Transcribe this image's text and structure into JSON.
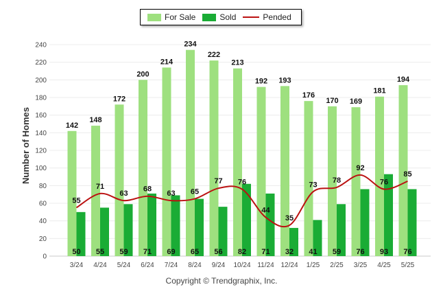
{
  "chart_data": {
    "type": "bar",
    "categories": [
      "3/24",
      "4/24",
      "5/24",
      "6/24",
      "7/24",
      "8/24",
      "9/24",
      "10/24",
      "11/24",
      "12/24",
      "1/25",
      "2/25",
      "3/25",
      "4/25",
      "5/25"
    ],
    "series": [
      {
        "name": "For Sale",
        "type": "bar",
        "color": "#9ee07f",
        "values": [
          142,
          148,
          172,
          200,
          214,
          234,
          222,
          213,
          192,
          193,
          176,
          170,
          169,
          181,
          194
        ]
      },
      {
        "name": "Sold",
        "type": "bar",
        "color": "#1aac35",
        "values": [
          50,
          55,
          59,
          71,
          69,
          65,
          56,
          82,
          71,
          32,
          41,
          59,
          76,
          93,
          76
        ]
      },
      {
        "name": "Pended",
        "type": "line",
        "color": "#bb1111",
        "values": [
          55,
          71,
          63,
          68,
          63,
          65,
          77,
          76,
          44,
          35,
          73,
          78,
          92,
          76,
          85
        ]
      }
    ],
    "ylabel": "Number of Homes",
    "xlabel": "",
    "ylim": [
      0,
      240
    ],
    "yticks": [
      0,
      20,
      40,
      60,
      80,
      100,
      120,
      140,
      160,
      180,
      200,
      220,
      240
    ],
    "grid": true,
    "legend": "top-center"
  },
  "footer": {
    "copyright": "Copyright © Trendgraphix, Inc."
  }
}
